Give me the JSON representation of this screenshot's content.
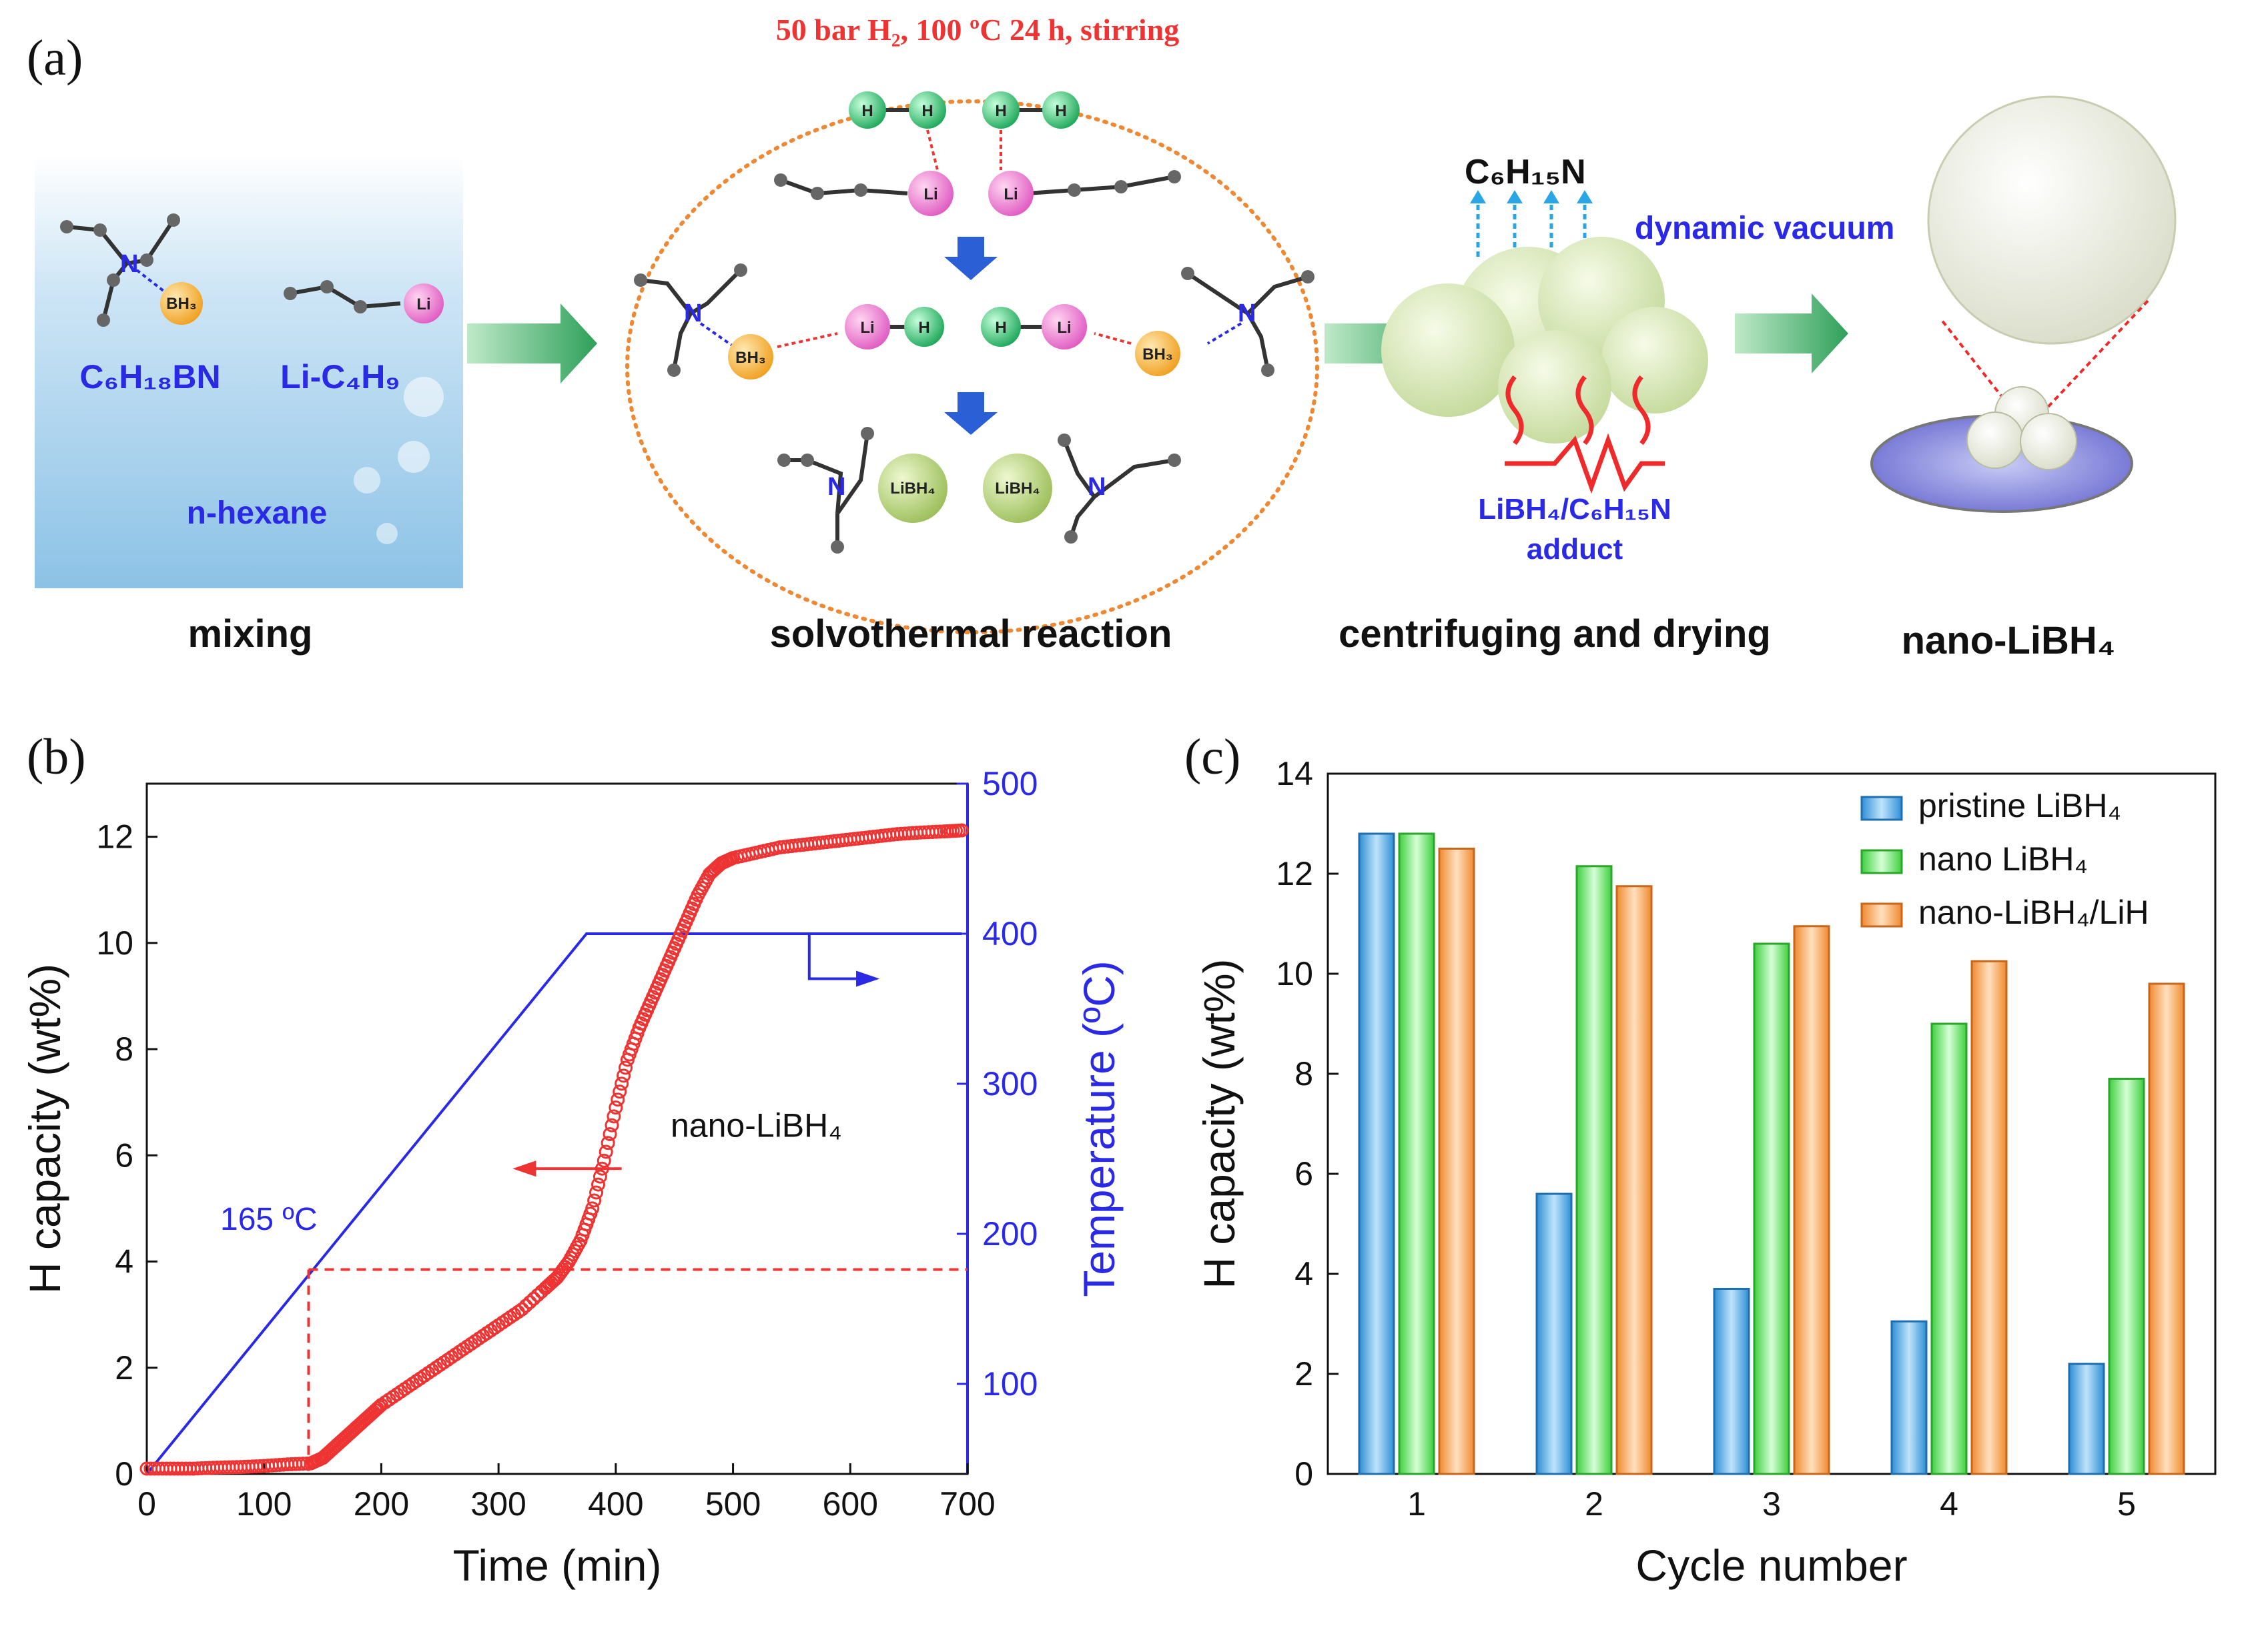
{
  "panel_a": {
    "label": "(a)",
    "conditions": "50 bar H₂, 100 ºC 24 h, stirring",
    "steps": [
      "mixing",
      "solvothermal reaction",
      "centrifuging and drying",
      "nano-LiBH₄"
    ],
    "reagent_1": "C₆H₁₈BN",
    "reagent_2": "Li-C₄H₉",
    "solvent": "n-hexane",
    "byproduct": "C₆H₁₅N",
    "vacuum_label": "dynamic vacuum",
    "adduct_label_1": "LiBH₄/C₆H₁₅N",
    "adduct_label_2": "adduct",
    "atoms": {
      "h": "H",
      "li": "Li",
      "bh3": "BH₃",
      "n": "N",
      "libh4": "LiBH₄"
    }
  },
  "panel_b": {
    "label": "(b)",
    "annotation_temp": "165 ºC",
    "annotation_series": "nano-LiBH₄"
  },
  "panel_c": {
    "label": "(c)"
  },
  "colors": {
    "blue_axis": "#2a2ae6",
    "red_series": "#ee3333",
    "bar_blue": "#4aa6e6",
    "bar_green": "#66e266",
    "bar_orange": "#f5a055"
  },
  "chart_data": [
    {
      "type": "scatter",
      "title": "",
      "xlabel": "Time (min)",
      "ylabel": "H capacity (wt%)",
      "y2label": "Temperature (ºC)",
      "xlim": [
        0,
        700
      ],
      "ylim": [
        0,
        13
      ],
      "y2lim": [
        40,
        500
      ],
      "xticks": [
        0,
        100,
        200,
        300,
        400,
        500,
        600,
        700
      ],
      "yticks": [
        0,
        2,
        4,
        6,
        8,
        10,
        12
      ],
      "y2ticks": [
        100,
        200,
        300,
        400,
        500
      ],
      "series": [
        {
          "name": "nano-LiBH₄",
          "axis": "left",
          "x": [
            0,
            20,
            40,
            60,
            80,
            100,
            120,
            140,
            150,
            160,
            170,
            180,
            190,
            200,
            220,
            240,
            260,
            280,
            300,
            320,
            340,
            350,
            360,
            370,
            380,
            390,
            400,
            410,
            420,
            430,
            440,
            450,
            460,
            470,
            480,
            490,
            500,
            520,
            540,
            560,
            580,
            600,
            620,
            640,
            660,
            680,
            695
          ],
          "y": [
            0.1,
            0.1,
            0.1,
            0.12,
            0.13,
            0.15,
            0.18,
            0.2,
            0.3,
            0.5,
            0.7,
            0.9,
            1.1,
            1.3,
            1.6,
            1.9,
            2.2,
            2.5,
            2.8,
            3.1,
            3.5,
            3.7,
            4.0,
            4.4,
            5.0,
            5.9,
            6.9,
            7.8,
            8.4,
            8.9,
            9.4,
            9.9,
            10.4,
            10.9,
            11.3,
            11.5,
            11.6,
            11.7,
            11.8,
            11.85,
            11.9,
            11.95,
            12.0,
            12.05,
            12.08,
            12.1,
            12.12
          ]
        },
        {
          "name": "Temperature",
          "axis": "right",
          "x": [
            0,
            375,
            695
          ],
          "y": [
            40,
            400,
            400
          ]
        }
      ],
      "annotations": [
        "165 ºC",
        "nano-LiBH₄"
      ]
    },
    {
      "type": "bar",
      "title": "",
      "xlabel": "Cycle number",
      "ylabel": "H capacity (wt%)",
      "ylim": [
        0,
        14
      ],
      "yticks": [
        0,
        2,
        4,
        6,
        8,
        10,
        12,
        14
      ],
      "categories": [
        "1",
        "2",
        "3",
        "4",
        "5"
      ],
      "series": [
        {
          "name": "pristine LiBH₄",
          "values": [
            12.8,
            5.6,
            3.7,
            3.05,
            2.2
          ]
        },
        {
          "name": "nano LiBH₄",
          "values": [
            12.8,
            12.15,
            10.6,
            9.0,
            7.9
          ]
        },
        {
          "name": "nano-LiBH₄/LiH",
          "values": [
            12.5,
            11.75,
            10.95,
            10.25,
            9.8
          ]
        }
      ],
      "legend": "top-right"
    }
  ]
}
